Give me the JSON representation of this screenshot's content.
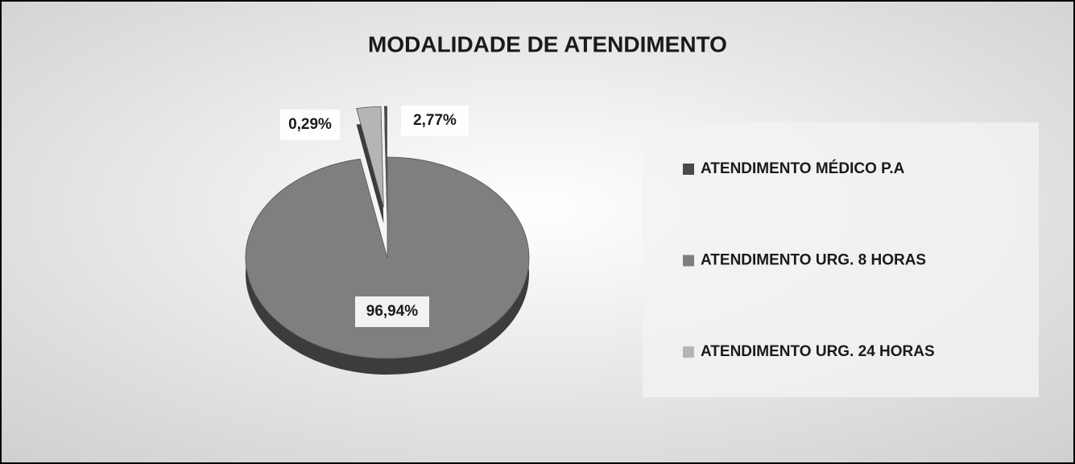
{
  "chart_data": {
    "type": "pie",
    "title": "MODALIDADE DE ATENDIMENTO",
    "categories": [
      "ATENDIMENTO MÉDICO P.A",
      "ATENDIMENTO URG. 8 HORAS",
      "ATENDIMENTO URG. 24 HORAS"
    ],
    "values": [
      0.29,
      96.94,
      2.77
    ],
    "value_labels": [
      "0,29%",
      "96,94%",
      "2,77%"
    ],
    "colors": [
      "#4a4a4a",
      "#7f7f7f",
      "#b5b5b5"
    ],
    "legend": "right"
  }
}
